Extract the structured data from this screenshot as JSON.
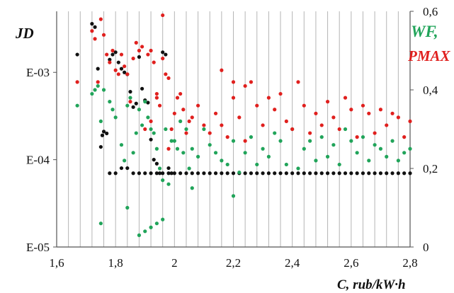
{
  "chart_data": {
    "type": "scatter",
    "title": "",
    "xlabel": "C, rub/kW·h",
    "ylabel_left": "JD",
    "ylabel_right_1": "WF,",
    "ylabel_right_2": "PMAX",
    "xlim": [
      1.6,
      2.8
    ],
    "x_ticks": [
      "1,6",
      "1,8",
      "2",
      "2,2",
      "2,4",
      "2,6",
      "2,8"
    ],
    "ylim_left": [
      1e-05,
      0.005
    ],
    "y_scale_left": "log",
    "y_ticks_left": [
      "E-05",
      "E-04",
      "E-03"
    ],
    "ylim_right": [
      0,
      0.6
    ],
    "y_ticks_right": [
      "0",
      "0,2",
      "0,4",
      "0,6"
    ],
    "grid": "vertical",
    "colors": {
      "black": "#111111",
      "green": "#21a45a",
      "red": "#e0201e"
    },
    "series": [
      {
        "color": "black",
        "axis": "left",
        "x": [
          1.67,
          1.72,
          1.73,
          1.74,
          1.75,
          1.755,
          1.76,
          1.77,
          1.78,
          1.79,
          1.8,
          1.81,
          1.82,
          1.83,
          1.84,
          1.85,
          1.86,
          1.87,
          1.88,
          1.89,
          1.9,
          1.91,
          1.92,
          1.93,
          1.94,
          1.95,
          1.96,
          1.97,
          1.98,
          1.99,
          1.78,
          1.8,
          1.82,
          1.84,
          1.86,
          1.88,
          1.9,
          1.92,
          1.94,
          1.96,
          1.98,
          2.0,
          2.02,
          2.04,
          2.06,
          2.08,
          2.1,
          2.12,
          2.14,
          2.16,
          2.18,
          2.2,
          2.22,
          2.24,
          2.26,
          2.28,
          2.3,
          2.32,
          2.34,
          2.36,
          2.38,
          2.4,
          2.42,
          2.44,
          2.46,
          2.48,
          2.5,
          2.52,
          2.54,
          2.56,
          2.58,
          2.6,
          2.62,
          2.64,
          2.66,
          2.68,
          2.7,
          2.72,
          2.74,
          2.76,
          2.78,
          2.8
        ],
        "y": [
          0.0016,
          0.0036,
          0.0033,
          0.0011,
          0.00014,
          0.00019,
          0.00021,
          0.0002,
          0.0014,
          0.0016,
          0.0017,
          0.0013,
          0.0011,
          0.001,
          0.00095,
          0.0006,
          0.0004,
          0.00044,
          0.0015,
          0.00065,
          0.00048,
          0.00045,
          0.00017,
          0.0001,
          9e-05,
          7e-05,
          0.0017,
          0.0016,
          8e-05,
          7e-05,
          7e-05,
          7e-05,
          8e-05,
          8e-05,
          7e-05,
          7e-05,
          7e-05,
          7e-05,
          7e-05,
          7e-05,
          7e-05,
          7e-05,
          7e-05,
          7e-05,
          7e-05,
          7e-05,
          7e-05,
          7e-05,
          7e-05,
          7e-05,
          7e-05,
          7e-05,
          7e-05,
          7e-05,
          7e-05,
          7e-05,
          7e-05,
          7e-05,
          7e-05,
          7e-05,
          7e-05,
          7e-05,
          7e-05,
          7e-05,
          7e-05,
          7e-05,
          7e-05,
          7e-05,
          7e-05,
          7e-05,
          7e-05,
          7e-05,
          7e-05,
          7e-05,
          7e-05,
          7e-05,
          7e-05,
          7e-05,
          7e-05,
          7e-05,
          7e-05,
          7e-05
        ]
      },
      {
        "color": "green",
        "axis": "right",
        "x": [
          1.67,
          1.72,
          1.73,
          1.74,
          1.75,
          1.75,
          1.76,
          1.78,
          1.79,
          1.8,
          1.82,
          1.83,
          1.84,
          1.85,
          1.86,
          1.87,
          1.88,
          1.89,
          1.9,
          1.91,
          1.92,
          1.93,
          1.94,
          1.95,
          1.96,
          1.97,
          1.98,
          1.99,
          2.0,
          2.01,
          2.02,
          2.03,
          2.04,
          2.05,
          2.06,
          2.08,
          2.1,
          2.12,
          2.14,
          2.16,
          2.18,
          2.2,
          2.22,
          2.24,
          2.26,
          2.28,
          2.3,
          2.32,
          2.34,
          2.36,
          2.38,
          2.4,
          2.42,
          2.44,
          2.46,
          2.48,
          2.5,
          2.52,
          2.54,
          2.56,
          2.58,
          2.6,
          2.62,
          2.64,
          2.66,
          2.68,
          2.7,
          2.72,
          2.74,
          2.76,
          2.78,
          2.8,
          1.9,
          1.92,
          1.94,
          1.96,
          1.84,
          2.2,
          1.88,
          2.06
        ],
        "y": [
          0.36,
          0.39,
          0.4,
          0.41,
          0.32,
          0.06,
          0.4,
          0.37,
          0.35,
          0.33,
          0.26,
          0.22,
          0.36,
          0.38,
          0.24,
          0.29,
          0.35,
          0.31,
          0.37,
          0.33,
          0.3,
          0.29,
          0.25,
          0.2,
          0.17,
          0.3,
          0.16,
          0.27,
          0.27,
          0.25,
          0.32,
          0.24,
          0.3,
          0.2,
          0.25,
          0.23,
          0.3,
          0.26,
          0.24,
          0.22,
          0.21,
          0.27,
          0.19,
          0.24,
          0.28,
          0.21,
          0.25,
          0.23,
          0.29,
          0.27,
          0.21,
          0.3,
          0.2,
          0.25,
          0.27,
          0.22,
          0.28,
          0.23,
          0.26,
          0.21,
          0.3,
          0.27,
          0.24,
          0.28,
          0.22,
          0.26,
          0.25,
          0.23,
          0.27,
          0.22,
          0.24,
          0.25,
          0.04,
          0.05,
          0.06,
          0.07,
          0.1,
          0.13,
          0.03,
          0.15
        ]
      },
      {
        "color": "red",
        "axis": "right",
        "x": [
          1.67,
          1.72,
          1.73,
          1.74,
          1.75,
          1.76,
          1.77,
          1.78,
          1.79,
          1.8,
          1.81,
          1.82,
          1.83,
          1.84,
          1.85,
          1.86,
          1.87,
          1.88,
          1.89,
          1.9,
          1.91,
          1.92,
          1.93,
          1.94,
          1.95,
          1.96,
          1.97,
          1.98,
          1.99,
          2.0,
          2.01,
          2.02,
          2.03,
          2.04,
          2.05,
          2.06,
          2.08,
          2.1,
          2.12,
          2.14,
          2.16,
          2.18,
          2.2,
          2.22,
          2.24,
          2.26,
          2.28,
          2.3,
          2.32,
          2.34,
          2.36,
          2.38,
          2.4,
          2.42,
          2.44,
          2.46,
          2.48,
          2.5,
          2.52,
          2.54,
          2.56,
          2.58,
          2.6,
          2.62,
          2.64,
          2.66,
          2.68,
          2.7,
          2.72,
          2.74,
          2.76,
          2.78,
          2.8,
          1.96,
          1.94,
          1.92,
          1.98,
          2.16,
          2.2,
          2.24
        ],
        "y": [
          0.42,
          0.55,
          0.53,
          0.42,
          0.58,
          0.54,
          0.49,
          0.47,
          0.5,
          0.45,
          0.44,
          0.49,
          0.46,
          0.44,
          0.37,
          0.48,
          0.52,
          0.5,
          0.51,
          0.3,
          0.49,
          0.5,
          0.47,
          0.39,
          0.36,
          0.48,
          0.44,
          0.43,
          0.3,
          0.34,
          0.38,
          0.39,
          0.35,
          0.29,
          0.32,
          0.33,
          0.36,
          0.31,
          0.29,
          0.34,
          0.31,
          0.28,
          0.38,
          0.33,
          0.27,
          0.42,
          0.36,
          0.31,
          0.38,
          0.35,
          0.39,
          0.32,
          0.3,
          0.42,
          0.36,
          0.29,
          0.34,
          0.31,
          0.37,
          0.33,
          0.3,
          0.38,
          0.35,
          0.28,
          0.36,
          0.34,
          0.29,
          0.35,
          0.31,
          0.34,
          0.33,
          0.28,
          0.32,
          0.59,
          0.38,
          0.32,
          0.25,
          0.45,
          0.42,
          0.41
        ]
      }
    ]
  }
}
